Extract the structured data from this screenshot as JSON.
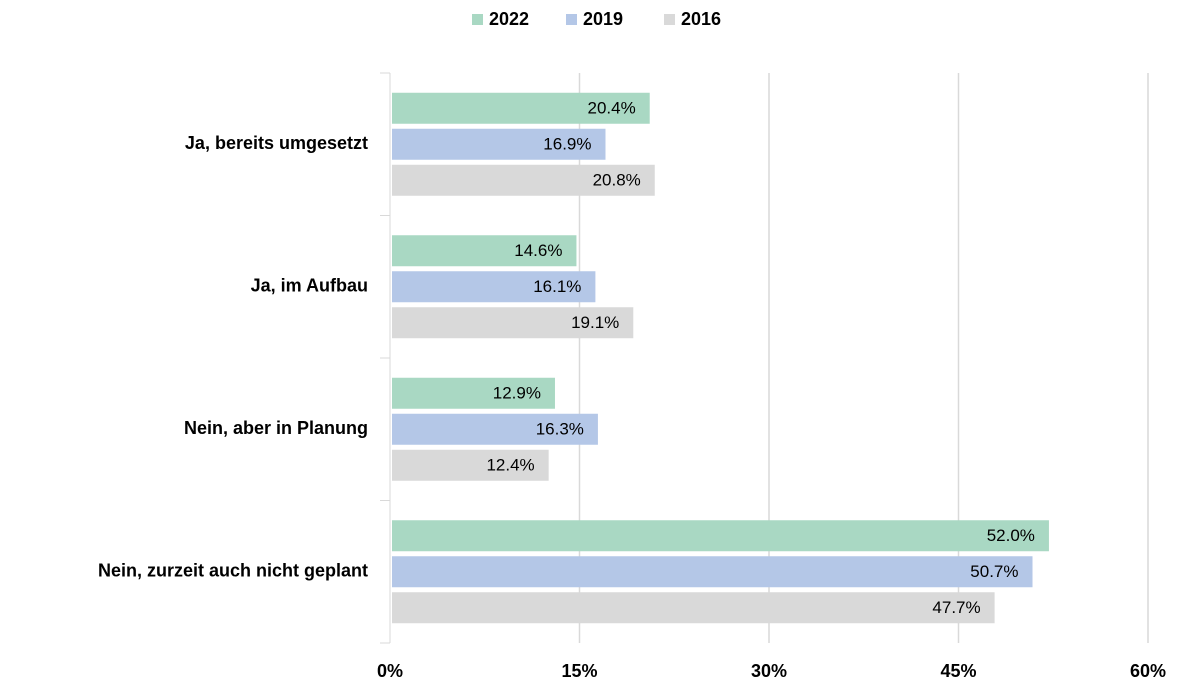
{
  "chart_data": {
    "type": "bar",
    "orientation": "horizontal",
    "categories": [
      "Ja, bereits umgesetzt",
      "Ja, im Aufbau",
      "Nein, aber in Planung",
      "Nein, zurzeit auch nicht geplant"
    ],
    "series": [
      {
        "name": "2022",
        "color": "#a9d8c3",
        "values": [
          20.4,
          14.6,
          12.9,
          52.0
        ],
        "value_labels": [
          "20.4%",
          "14.6%",
          "12.9%",
          "52.0%"
        ]
      },
      {
        "name": "2019",
        "color": "#b4c7e7",
        "values": [
          16.9,
          16.1,
          16.3,
          50.7
        ],
        "value_labels": [
          "16.9%",
          "16.1%",
          "16.3%",
          "50.7%"
        ]
      },
      {
        "name": "2016",
        "color": "#d9d9d9",
        "values": [
          20.8,
          19.1,
          12.4,
          47.7
        ],
        "value_labels": [
          "20.8%",
          "19.1%",
          "12.4%",
          "47.7%"
        ]
      }
    ],
    "xlim": [
      0,
      60
    ],
    "xticks": [
      {
        "value": 0,
        "label": "0%"
      },
      {
        "value": 15,
        "label": "15%"
      },
      {
        "value": 30,
        "label": "30%"
      },
      {
        "value": 45,
        "label": "45%"
      },
      {
        "value": 60,
        "label": "60%"
      }
    ],
    "grid": true,
    "legend": "top"
  }
}
